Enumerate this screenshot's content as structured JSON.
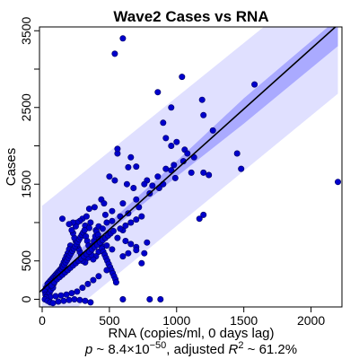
{
  "chart_data": {
    "type": "scatter",
    "title": "Wave2 Cases vs RNA",
    "xlabel": "RNA (copies/ml, 0 days lag)",
    "ylabel": "Cases",
    "subtitle": {
      "p_symbol": "p",
      "p_prefix": " ~ 8.4",
      "times": "×",
      "base": "10",
      "exponent": "−50",
      "adjusted": ", adjusted ",
      "r_symbol": "R",
      "r_exp": "2",
      "r_value": " ~ 61.2%"
    },
    "xlim": [
      -20,
      2230
    ],
    "ylim": [
      -100,
      3550
    ],
    "x_ticks": [
      0,
      500,
      1000,
      1500,
      2000
    ],
    "x_tick_labels": [
      "0",
      "500",
      "1000",
      "1500",
      "2000"
    ],
    "y_ticks": [
      0,
      500,
      1500,
      2500,
      3500
    ],
    "y_tick_labels": [
      "0",
      "500",
      "1500",
      "2500",
      "3500"
    ],
    "y_minor_ticks": [
      1000,
      2000,
      3000
    ],
    "grid": false,
    "fit": {
      "intercept": 125,
      "slope": 1.57
    },
    "confidence_band": {
      "x": [
        0,
        500,
        1000,
        1500,
        2200
      ],
      "lower": [
        60,
        880,
        1600,
        2290,
        3300
      ],
      "upper": [
        190,
        1000,
        1800,
        2620,
        3660
      ]
    },
    "prediction_band": {
      "x": [
        0,
        2200
      ],
      "lower": [
        -480,
        2680
      ],
      "upper": [
        1220,
        4330
      ]
    },
    "colors": {
      "points": "#0000cc",
      "point_edge": "#000060",
      "fit_line": "#000000",
      "confidence": "#aaaaff",
      "prediction": "#e0e0ff"
    },
    "points": [
      [
        600,
        3400
      ],
      [
        540,
        3200
      ],
      [
        1040,
        2900
      ],
      [
        1580,
        2800
      ],
      [
        860,
        2700
      ],
      [
        1190,
        2600
      ],
      [
        960,
        2500
      ],
      [
        1200,
        2400
      ],
      [
        900,
        2300
      ],
      [
        1270,
        2200
      ],
      [
        960,
        2000
      ],
      [
        1000,
        2050
      ],
      [
        920,
        2100
      ],
      [
        1060,
        1950
      ],
      [
        1080,
        1900
      ],
      [
        1130,
        1850
      ],
      [
        1450,
        1900
      ],
      [
        1480,
        1700
      ],
      [
        1050,
        1800
      ],
      [
        980,
        1750
      ],
      [
        960,
        1680
      ],
      [
        920,
        1700
      ],
      [
        860,
        1600
      ],
      [
        1200,
        1650
      ],
      [
        1240,
        1620
      ],
      [
        1110,
        1650
      ],
      [
        2200,
        1530
      ],
      [
        990,
        1580
      ],
      [
        870,
        1450
      ],
      [
        900,
        1500
      ],
      [
        640,
        1720
      ],
      [
        700,
        1730
      ],
      [
        560,
        1900
      ],
      [
        560,
        1960
      ],
      [
        660,
        1850
      ],
      [
        780,
        1550
      ],
      [
        820,
        1480
      ],
      [
        500,
        1600
      ],
      [
        540,
        1550
      ],
      [
        630,
        1500
      ],
      [
        680,
        1450
      ],
      [
        720,
        1200
      ],
      [
        760,
        1500
      ],
      [
        800,
        1380
      ],
      [
        700,
        1300
      ],
      [
        440,
        1300
      ],
      [
        460,
        1250
      ],
      [
        390,
        1200
      ],
      [
        600,
        1250
      ],
      [
        1170,
        1050
      ],
      [
        1200,
        1100
      ],
      [
        350,
        1180
      ],
      [
        360,
        1000
      ],
      [
        300,
        1050
      ],
      [
        330,
        1080
      ],
      [
        280,
        1020
      ],
      [
        260,
        1000
      ],
      [
        250,
        950
      ],
      [
        230,
        1000
      ],
      [
        200,
        980
      ],
      [
        150,
        1050
      ],
      [
        320,
        960
      ],
      [
        350,
        930
      ],
      [
        400,
        900
      ],
      [
        420,
        950
      ],
      [
        450,
        920
      ],
      [
        480,
        1000
      ],
      [
        520,
        1020
      ],
      [
        560,
        800
      ],
      [
        600,
        900
      ],
      [
        620,
        760
      ],
      [
        660,
        720
      ],
      [
        700,
        680
      ],
      [
        780,
        740
      ],
      [
        500,
        850
      ],
      [
        480,
        700
      ],
      [
        520,
        650
      ],
      [
        440,
        700
      ],
      [
        420,
        620
      ],
      [
        400,
        560
      ],
      [
        380,
        520
      ],
      [
        360,
        600
      ],
      [
        340,
        540
      ],
      [
        320,
        480
      ],
      [
        300,
        500
      ],
      [
        290,
        580
      ],
      [
        280,
        620
      ],
      [
        270,
        660
      ],
      [
        260,
        700
      ],
      [
        250,
        760
      ],
      [
        240,
        800
      ],
      [
        230,
        860
      ],
      [
        220,
        900
      ],
      [
        210,
        700
      ],
      [
        200,
        650
      ],
      [
        190,
        600
      ],
      [
        180,
        560
      ],
      [
        170,
        520
      ],
      [
        160,
        480
      ],
      [
        150,
        440
      ],
      [
        140,
        400
      ],
      [
        130,
        380
      ],
      [
        120,
        360
      ],
      [
        110,
        340
      ],
      [
        100,
        320
      ],
      [
        90,
        300
      ],
      [
        80,
        280
      ],
      [
        70,
        260
      ],
      [
        60,
        240
      ],
      [
        50,
        220
      ],
      [
        40,
        200
      ],
      [
        30,
        150
      ],
      [
        20,
        100
      ],
      [
        25,
        60
      ],
      [
        35,
        40
      ],
      [
        45,
        20
      ],
      [
        55,
        80
      ],
      [
        65,
        120
      ],
      [
        75,
        160
      ],
      [
        85,
        200
      ],
      [
        95,
        240
      ],
      [
        105,
        280
      ],
      [
        115,
        300
      ],
      [
        125,
        330
      ],
      [
        135,
        360
      ],
      [
        145,
        390
      ],
      [
        155,
        420
      ],
      [
        165,
        450
      ],
      [
        175,
        480
      ],
      [
        185,
        510
      ],
      [
        195,
        540
      ],
      [
        205,
        570
      ],
      [
        215,
        600
      ],
      [
        225,
        630
      ],
      [
        235,
        660
      ],
      [
        245,
        690
      ],
      [
        255,
        720
      ],
      [
        265,
        750
      ],
      [
        275,
        780
      ],
      [
        285,
        810
      ],
      [
        295,
        840
      ],
      [
        305,
        870
      ],
      [
        315,
        900
      ],
      [
        325,
        820
      ],
      [
        335,
        760
      ],
      [
        345,
        700
      ],
      [
        355,
        640
      ],
      [
        365,
        580
      ],
      [
        375,
        700
      ],
      [
        385,
        760
      ],
      [
        395,
        820
      ],
      [
        405,
        880
      ],
      [
        415,
        840
      ],
      [
        425,
        780
      ],
      [
        435,
        740
      ],
      [
        445,
        660
      ],
      [
        455,
        620
      ],
      [
        465,
        580
      ],
      [
        475,
        540
      ],
      [
        485,
        500
      ],
      [
        495,
        460
      ],
      [
        505,
        420
      ],
      [
        515,
        380
      ],
      [
        525,
        340
      ],
      [
        535,
        300
      ],
      [
        545,
        260
      ],
      [
        550,
        220
      ],
      [
        480,
        380
      ],
      [
        420,
        300
      ],
      [
        380,
        250
      ],
      [
        340,
        200
      ],
      [
        300,
        150
      ],
      [
        260,
        100
      ],
      [
        220,
        80
      ],
      [
        180,
        60
      ],
      [
        140,
        50
      ],
      [
        100,
        40
      ],
      [
        60,
        30
      ],
      [
        30,
        20
      ],
      [
        20,
        0
      ],
      [
        40,
        -20
      ],
      [
        60,
        -40
      ],
      [
        80,
        -50
      ],
      [
        120,
        -30
      ],
      [
        160,
        -20
      ],
      [
        200,
        -10
      ],
      [
        240,
        0
      ],
      [
        280,
        -10
      ],
      [
        320,
        -20
      ],
      [
        360,
        -40
      ],
      [
        80,
        150
      ],
      [
        70,
        180
      ],
      [
        90,
        220
      ],
      [
        110,
        260
      ],
      [
        130,
        290
      ],
      [
        150,
        320
      ],
      [
        170,
        350
      ],
      [
        190,
        380
      ],
      [
        210,
        410
      ],
      [
        230,
        440
      ],
      [
        250,
        470
      ],
      [
        270,
        500
      ],
      [
        290,
        530
      ],
      [
        310,
        560
      ],
      [
        330,
        590
      ],
      [
        350,
        620
      ],
      [
        370,
        650
      ],
      [
        390,
        680
      ],
      [
        410,
        710
      ],
      [
        430,
        740
      ],
      [
        450,
        770
      ],
      [
        470,
        800
      ],
      [
        490,
        830
      ],
      [
        510,
        860
      ],
      [
        530,
        890
      ],
      [
        580,
        920
      ],
      [
        620,
        960
      ],
      [
        660,
        1000
      ],
      [
        700,
        1040
      ],
      [
        740,
        1080
      ],
      [
        760,
        600
      ],
      [
        700,
        640
      ],
      [
        640,
        600
      ],
      [
        600,
        560
      ],
      [
        740,
        470
      ],
      [
        600,
        0
      ],
      [
        880,
        0
      ],
      [
        800,
        0
      ],
      [
        640,
        1120
      ],
      [
        580,
        1080
      ],
      [
        520,
        1150
      ],
      [
        470,
        1100
      ]
    ]
  }
}
